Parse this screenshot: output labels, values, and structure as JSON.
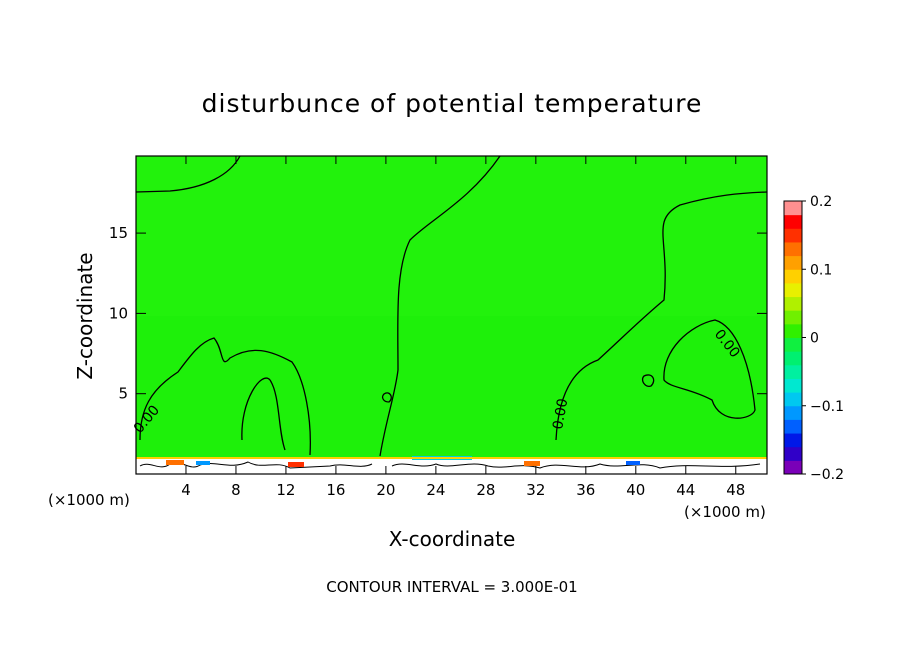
{
  "chart_data": {
    "type": "heatmap",
    "title": "disturbunce of potential temperature",
    "xlabel": "X-coordinate",
    "ylabel": "Z-coordinate",
    "x_unit_left": "(×1000 m)",
    "x_unit_right": "(×1000 m)",
    "xlim": [
      0,
      50.5
    ],
    "ylim": [
      0,
      19.8
    ],
    "x_ticks": [
      "4",
      "8",
      "12",
      "16",
      "20",
      "24",
      "28",
      "32",
      "36",
      "40",
      "44",
      "48"
    ],
    "y_ticks": [
      "5",
      "10",
      "15"
    ],
    "contour_label": "0.00",
    "footer": "CONTOUR INTERVAL = 3.000E-01",
    "colorbar": {
      "range": [
        -0.2,
        0.2
      ],
      "tick_labels": [
        "0.2",
        "0.1",
        "0",
        "−0.1",
        "−0.2"
      ],
      "colors": [
        "#7a00b8",
        "#3000c8",
        "#0018e8",
        "#0060ff",
        "#0098ff",
        "#00c8f0",
        "#00e8d0",
        "#00f0a0",
        "#00f070",
        "#10f040",
        "#30f000",
        "#70f000",
        "#b0f000",
        "#e8f000",
        "#ffd000",
        "#ffa000",
        "#ff7000",
        "#ff3000",
        "#ff0000",
        "#ff9090"
      ]
    },
    "field_fill": "#1ef00a"
  }
}
